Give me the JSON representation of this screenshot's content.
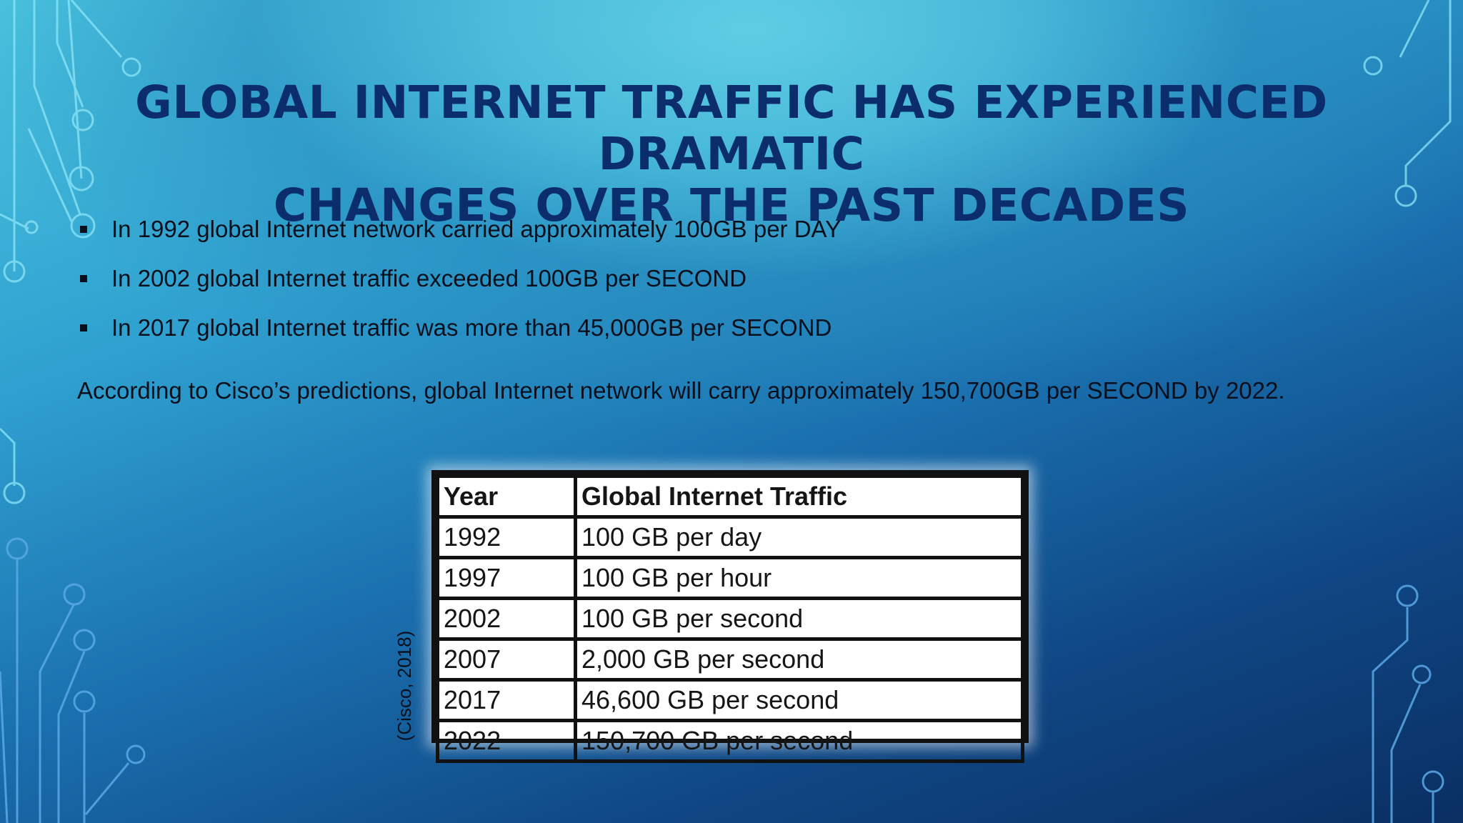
{
  "slide": {
    "title_line1": "GLOBAL INTERNET TRAFFIC HAS EXPERIENCED DRAMATIC",
    "title_line2": "CHANGES OVER THE PAST DECADES",
    "bullets": [
      "In 1992 global Internet network carried approximately 100GB per DAY",
      "In 2002 global Internet traffic exceeded 100GB per SECOND",
      "In 2017 global Internet traffic was more than 45,000GB per SECOND"
    ],
    "paragraph": "According to Cisco’s predictions, global Internet network will carry approximately 150,700GB per SECOND by 2022.",
    "citation": "(Cisco, 2018)"
  },
  "table": {
    "headers": [
      "Year",
      "Global Internet Traffic"
    ],
    "rows": [
      [
        "1992",
        "100 GB per day"
      ],
      [
        "1997",
        "100 GB per hour"
      ],
      [
        "2002",
        "100 GB per second"
      ],
      [
        "2007",
        "2,000 GB per second"
      ],
      [
        "2017",
        "46,600 GB per second"
      ],
      [
        "2022",
        "150,700 GB per second"
      ]
    ]
  },
  "colors": {
    "title": "#0c2d6b",
    "circuit_lines": "#7fe3f5",
    "background_top": "#4cc6e0",
    "background_bottom": "#0a2f63"
  }
}
